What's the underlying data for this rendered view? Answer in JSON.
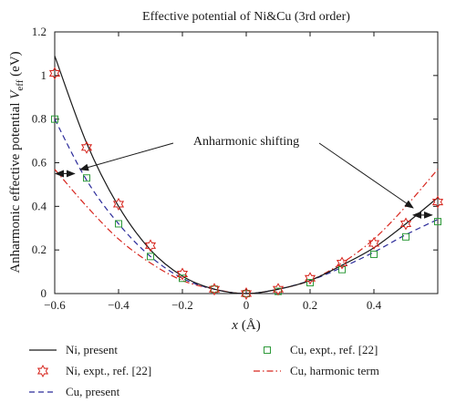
{
  "chart_data": {
    "type": "line",
    "title": "Effective potential of Ni&Cu (3rd order)",
    "xlabel": "x (Å)",
    "xlabel_var": "x",
    "xlabel_unit": "(Å)",
    "ylabel": "Anharmonic effective potential V_eff (eV)",
    "ylabel_main": "Anharmonic effective potential ",
    "ylabel_var": "V",
    "ylabel_sub": "eff",
    "ylabel_unit": " (eV)",
    "xlim": [
      -0.6,
      0.6
    ],
    "ylim": [
      0,
      1.2
    ],
    "x_ticks": [
      "−0.6",
      "−0.4",
      "−0.2",
      "0",
      "0.2",
      "0.4"
    ],
    "x_tick_values": [
      -0.6,
      -0.4,
      -0.2,
      0,
      0.2,
      0.4
    ],
    "y_ticks": [
      "0",
      "0.2",
      "0.4",
      "0.6",
      "0.8",
      "1",
      "1.2"
    ],
    "y_tick_values": [
      0,
      0.2,
      0.4,
      0.6,
      0.8,
      1.0,
      1.2
    ],
    "grid": false,
    "series": [
      {
        "name": "Ni, present",
        "style": "line",
        "color": "#1a1a1a",
        "x": [
          -0.6,
          -0.5,
          -0.4,
          -0.3,
          -0.2,
          -0.1,
          0,
          0.1,
          0.2,
          0.3,
          0.4,
          0.5,
          0.6
        ],
        "y": [
          1.09,
          0.69,
          0.4,
          0.2,
          0.08,
          0.02,
          0.0,
          0.02,
          0.06,
          0.13,
          0.21,
          0.32,
          0.44
        ]
      },
      {
        "name": "Ni, expt., ref. [22]",
        "style": "star",
        "color": "#d7261e",
        "x": [
          -0.6,
          -0.5,
          -0.4,
          -0.3,
          -0.2,
          -0.1,
          0,
          0.1,
          0.2,
          0.3,
          0.4,
          0.5,
          0.6
        ],
        "y": [
          1.01,
          0.67,
          0.41,
          0.22,
          0.09,
          0.02,
          0.0,
          0.02,
          0.07,
          0.14,
          0.23,
          0.32,
          0.42
        ]
      },
      {
        "name": "Cu, present",
        "style": "dashed",
        "color": "#2b2b9a",
        "x": [
          -0.6,
          -0.5,
          -0.4,
          -0.3,
          -0.2,
          -0.1,
          0,
          0.1,
          0.2,
          0.3,
          0.4,
          0.5,
          0.6
        ],
        "y": [
          0.8,
          0.52,
          0.32,
          0.17,
          0.07,
          0.02,
          0.0,
          0.02,
          0.06,
          0.12,
          0.19,
          0.27,
          0.34
        ]
      },
      {
        "name": "Cu, expt., ref. [22]",
        "style": "square",
        "color": "#2e9a3a",
        "x": [
          -0.6,
          -0.5,
          -0.4,
          -0.3,
          -0.2,
          -0.1,
          0,
          0.1,
          0.2,
          0.3,
          0.4,
          0.5,
          0.6
        ],
        "y": [
          0.8,
          0.53,
          0.32,
          0.17,
          0.07,
          0.02,
          0.0,
          0.01,
          0.05,
          0.11,
          0.18,
          0.26,
          0.33
        ]
      },
      {
        "name": "Cu, harmonic term",
        "style": "dashdot",
        "color": "#d7261e",
        "x": [
          -0.6,
          -0.5,
          -0.4,
          -0.3,
          -0.2,
          -0.1,
          0,
          0.1,
          0.2,
          0.3,
          0.4,
          0.5,
          0.6
        ],
        "y": [
          0.57,
          0.4,
          0.25,
          0.14,
          0.06,
          0.02,
          0.0,
          0.02,
          0.06,
          0.14,
          0.25,
          0.4,
          0.57
        ]
      }
    ],
    "annotation": {
      "text": "Anharmonic shifting"
    },
    "legend": {
      "placement": "below",
      "entries": [
        "Ni, present",
        "Ni, expt., ref. [22]",
        "Cu, present",
        "Cu, expt., ref. [22]",
        "Cu, harmonic term"
      ]
    }
  }
}
